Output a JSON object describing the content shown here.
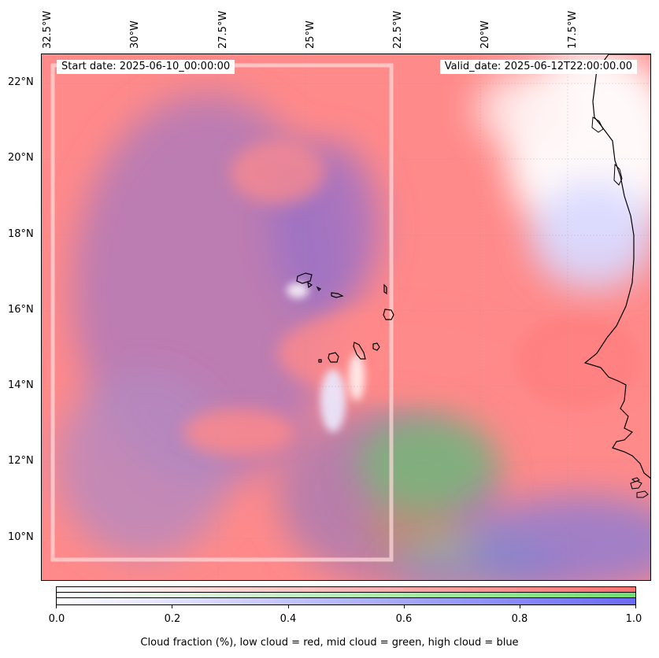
{
  "map": {
    "start_date": "Start date: 2025-06-10_00:00:00",
    "valid_date": "Valid_date: 2025-06-12T22:00:00.00",
    "lon_labels": [
      "32.5°W",
      "30°W",
      "27.5°W",
      "25°W",
      "22.5°W",
      "20°W",
      "17.5°W"
    ],
    "lat_labels": [
      "22°N",
      "20°N",
      "18°N",
      "16°N",
      "14°N",
      "12°N",
      "10°N"
    ],
    "colors": {
      "low_cloud": "#ff7a7a",
      "mid_cloud": "#7ae07a",
      "high_cloud": "#7a7aff",
      "mixed_low_high": "#b06ab0",
      "coastline": "#000000"
    }
  },
  "colorbar": {
    "ticks": [
      "0.0",
      "0.2",
      "0.4",
      "0.6",
      "0.8",
      "1.0"
    ],
    "label": "Cloud fraction (%), low cloud = red, mid cloud = green, high cloud = blue",
    "range": [
      0,
      1
    ]
  }
}
